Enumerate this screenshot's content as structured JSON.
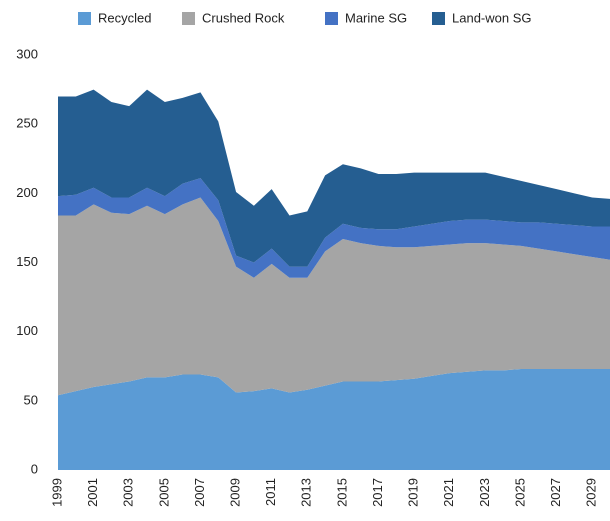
{
  "chart_data": {
    "type": "stacked-area",
    "x": [
      1999,
      2000,
      2001,
      2002,
      2003,
      2004,
      2005,
      2006,
      2007,
      2008,
      2009,
      2010,
      2011,
      2012,
      2013,
      2014,
      2015,
      2016,
      2017,
      2018,
      2019,
      2020,
      2021,
      2022,
      2023,
      2024,
      2025,
      2026,
      2027,
      2028,
      2029,
      2030
    ],
    "series": [
      {
        "name": "Recycled",
        "color": "#5b9bd5",
        "values": [
          54,
          57,
          60,
          62,
          64,
          67,
          67,
          69,
          69,
          67,
          56,
          57,
          59,
          56,
          58,
          61,
          64,
          64,
          64,
          65,
          66,
          68,
          70,
          71,
          72,
          72,
          73,
          73,
          73,
          73,
          73,
          73
        ]
      },
      {
        "name": "Crushed Rock",
        "color": "#a5a5a5",
        "values": [
          130,
          127,
          132,
          124,
          121,
          124,
          118,
          123,
          128,
          113,
          91,
          82,
          90,
          83,
          81,
          97,
          103,
          100,
          98,
          96,
          95,
          94,
          93,
          93,
          92,
          91,
          89,
          87,
          85,
          83,
          81,
          79
        ]
      },
      {
        "name": "Marine SG",
        "color": "#4472c4",
        "values": [
          14,
          15,
          12,
          11,
          12,
          13,
          13,
          15,
          14,
          15,
          8,
          11,
          11,
          8,
          8,
          10,
          11,
          11,
          12,
          13,
          15,
          16,
          17,
          17,
          17,
          17,
          17,
          19,
          20,
          21,
          22,
          24
        ]
      },
      {
        "name": "Land-won SG",
        "color": "#255e91",
        "values": [
          72,
          71,
          71,
          69,
          66,
          71,
          68,
          62,
          62,
          57,
          46,
          41,
          43,
          37,
          40,
          45,
          43,
          43,
          40,
          40,
          39,
          37,
          35,
          34,
          34,
          32,
          30,
          27,
          25,
          23,
          21,
          20
        ]
      }
    ],
    "xlim": [
      1999,
      2030
    ],
    "xticks": [
      1999,
      2001,
      2003,
      2005,
      2007,
      2009,
      2011,
      2013,
      2015,
      2017,
      2019,
      2021,
      2023,
      2025,
      2027,
      2029
    ],
    "ylim": [
      0,
      300
    ],
    "yticks": [
      0,
      50,
      100,
      150,
      200,
      250,
      300
    ],
    "legend": "top"
  }
}
